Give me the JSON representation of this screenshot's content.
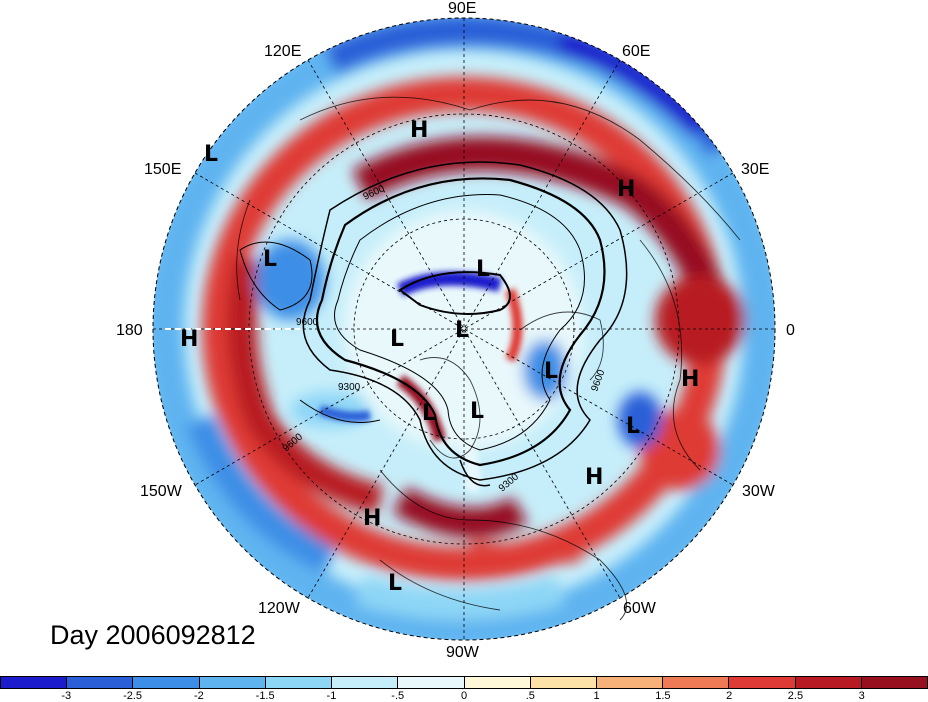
{
  "title_label": "Day 2006092812",
  "longitude_labels": [
    "90E",
    "60E",
    "30E",
    "0",
    "30W",
    "60W",
    "90W",
    "120W",
    "150W",
    "180",
    "150E",
    "120E"
  ],
  "pressure_systems": [
    {
      "label": "H"
    },
    {
      "label": "L"
    },
    {
      "label": "H"
    },
    {
      "label": "L"
    },
    {
      "label": "L"
    },
    {
      "label": "H"
    },
    {
      "label": "L"
    },
    {
      "label": "L"
    },
    {
      "label": "L"
    },
    {
      "label": "L"
    },
    {
      "label": "L"
    },
    {
      "label": "H"
    },
    {
      "label": "L"
    },
    {
      "label": "H"
    },
    {
      "label": "H"
    },
    {
      "label": "L"
    }
  ],
  "contour_labels": [
    "9600",
    "9600",
    "9300",
    "9600",
    "9600",
    "9300"
  ],
  "colorbar": {
    "ticks": [
      "-3",
      "-2.5",
      "-2",
      "-1.5",
      "-1",
      "-.5",
      "0",
      ".5",
      "1",
      "1.5",
      "2",
      "2.5",
      "3"
    ],
    "colors": [
      "#1c1ccc",
      "#2a5fd8",
      "#3c8ee6",
      "#5fb4f0",
      "#8ed6f6",
      "#c6eefa",
      "#e8f8fb",
      "#fff8d8",
      "#fde2a8",
      "#f7b27a",
      "#ee7a56",
      "#df3b36",
      "#b81a23",
      "#961020"
    ]
  }
}
